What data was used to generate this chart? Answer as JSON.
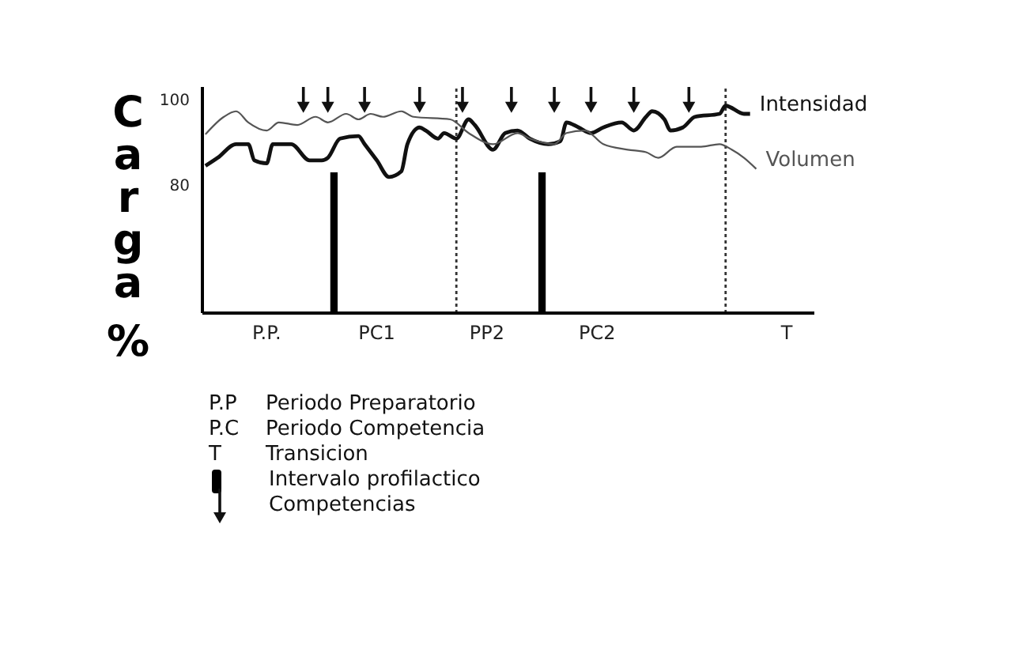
{
  "chart_data": {
    "type": "line",
    "ylabel": "Carga %",
    "categories": [
      null,
      null,
      null,
      null,
      null,
      null,
      null,
      null,
      null,
      null,
      "P.P.",
      null,
      null,
      null,
      null,
      null,
      null,
      null,
      null,
      null,
      null,
      null,
      null,
      null,
      null,
      null,
      null,
      null,
      "PC1",
      null,
      null,
      null,
      null,
      null,
      null,
      null,
      null,
      null,
      null,
      null,
      null,
      null,
      null,
      null,
      null,
      null,
      "PP2",
      null,
      null,
      null,
      null,
      null,
      null,
      null,
      null,
      null,
      null,
      null,
      null,
      null,
      null,
      null,
      null,
      null,
      "PC2",
      null,
      null,
      null,
      null,
      null,
      null,
      null,
      null,
      null,
      null,
      null,
      null,
      null,
      null,
      null,
      null,
      null,
      null,
      null,
      null,
      null,
      null,
      null,
      null,
      null,
      null,
      null,
      null,
      null,
      null,
      "T",
      null,
      null,
      null,
      null
    ],
    "ylim": [
      50,
      103
    ],
    "yticks": [
      80,
      100
    ],
    "legend": "bottom",
    "annotations": [
      "P.P Periodo Preparatorio",
      "P.C Periodo Competencia",
      "T Transicion"
    ],
    "series": [
      {
        "name": "Intensidad",
        "color": "#111111",
        "values": [
          84.5,
          null,
          86.4,
          null,
          null,
          89.6,
          null,
          89.6,
          85.8,
          null,
          85.1,
          89.6,
          null,
          null,
          89.6,
          null,
          null,
          85.8,
          null,
          85.8,
          86.4,
          null,
          90.9,
          null,
          null,
          91.5,
          89.6,
          null,
          85.8,
          null,
          81.9,
          null,
          83.2,
          89.6,
          null,
          93.5,
          92.8,
          null,
          90.9,
          92.2,
          null,
          90.9,
          null,
          95.4,
          94.1,
          null,
          null,
          88.3,
          null,
          92.2,
          null,
          92.8,
          null,
          90.9,
          null,
          null,
          89.6,
          null,
          90.3,
          94.7,
          null,
          93.5,
          null,
          92.2,
          null,
          93.5,
          null,
          null,
          94.7,
          null,
          92.8,
          null,
          96.0,
          97.3,
          null,
          95.4,
          92.8,
          null,
          93.5,
          null,
          96.0,
          null,
          null,
          null,
          96.7,
          98.6,
          null,
          null,
          96.7,
          96.7,
          null,
          null,
          null,
          null,
          null,
          null,
          null,
          null,
          null,
          null
        ]
      },
      {
        "name": "Volumen",
        "color": "#555555",
        "values": [
          91.9,
          null,
          null,
          96.0,
          null,
          97.3,
          null,
          94.7,
          null,
          null,
          92.8,
          null,
          94.7,
          null,
          null,
          94.1,
          null,
          null,
          96.0,
          null,
          94.7,
          null,
          null,
          96.7,
          null,
          95.4,
          null,
          96.7,
          null,
          96.0,
          null,
          null,
          97.3,
          null,
          96.0,
          null,
          null,
          null,
          null,
          null,
          95.4,
          null,
          null,
          92.2,
          null,
          null,
          null,
          89.6,
          null,
          null,
          null,
          92.2,
          null,
          90.9,
          null,
          null,
          null,
          89.6,
          null,
          92.2,
          null,
          null,
          92.8,
          null,
          null,
          89.6,
          null,
          null,
          null,
          88.3,
          null,
          null,
          87.7,
          null,
          86.4,
          null,
          null,
          89.0,
          null,
          null,
          null,
          89.0,
          null,
          null,
          89.6,
          null,
          88.3,
          null,
          86.4,
          null,
          83.8,
          null,
          null,
          null,
          null,
          null,
          null,
          null,
          null,
          null
        ]
      },
      {
        "name": "Intervalo profilactico",
        "type": "bar",
        "color": "#000000",
        "values": [
          null,
          null,
          null,
          null,
          null,
          null,
          null,
          null,
          null,
          null,
          null,
          null,
          null,
          null,
          null,
          null,
          null,
          null,
          null,
          null,
          null,
          83,
          null,
          null,
          null,
          null,
          null,
          null,
          null,
          null,
          null,
          null,
          null,
          null,
          null,
          null,
          null,
          null,
          null,
          null,
          null,
          null,
          null,
          null,
          null,
          null,
          null,
          null,
          null,
          null,
          null,
          null,
          null,
          null,
          null,
          83,
          null,
          null,
          null,
          null,
          null,
          null,
          null,
          null,
          null,
          null,
          null,
          null,
          null,
          null,
          null,
          null,
          null,
          null,
          null,
          null,
          null,
          null,
          null,
          null,
          null,
          null,
          null,
          null,
          null,
          null,
          null,
          null,
          null,
          null,
          null,
          null,
          null,
          null,
          null,
          null,
          null,
          null,
          null,
          null
        ]
      },
      {
        "name": "Competencias",
        "type": "scatter",
        "color": "#111111",
        "values": [
          null,
          null,
          null,
          null,
          null,
          null,
          null,
          null,
          null,
          null,
          null,
          null,
          null,
          null,
          null,
          null,
          101,
          null,
          null,
          null,
          101,
          null,
          null,
          null,
          null,
          null,
          101,
          null,
          null,
          null,
          null,
          null,
          null,
          null,
          null,
          101,
          null,
          null,
          null,
          null,
          null,
          null,
          101,
          null,
          null,
          null,
          null,
          null,
          null,
          null,
          101,
          null,
          null,
          null,
          null,
          null,
          null,
          101,
          null,
          null,
          null,
          null,
          null,
          101,
          null,
          null,
          null,
          null,
          null,
          null,
          101,
          null,
          null,
          null,
          null,
          null,
          null,
          null,
          null,
          101,
          null,
          null,
          null,
          null,
          null,
          null,
          null,
          null,
          null,
          null,
          null,
          null,
          null,
          null,
          null,
          null,
          null,
          null,
          null,
          null
        ]
      }
    ]
  }
}
